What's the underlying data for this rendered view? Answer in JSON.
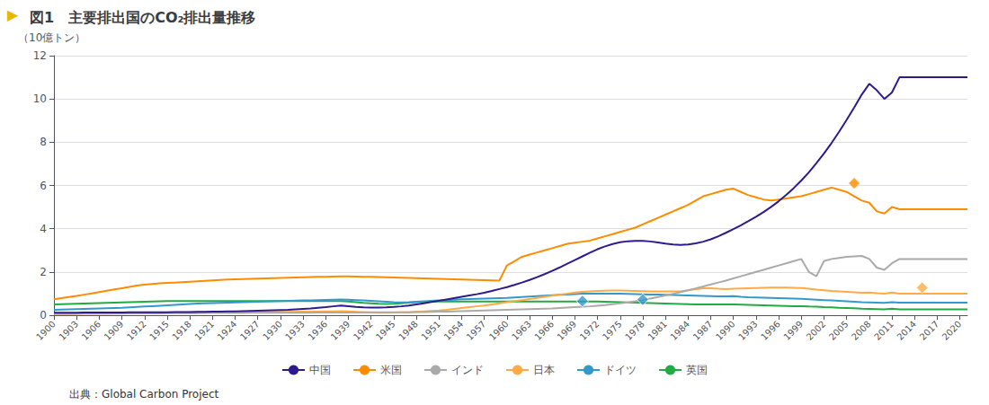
{
  "chart_data": {
    "type": "line",
    "title": "図1　主要排出国のCO₂排出量推移",
    "y_label": "（10億トン）",
    "annotations": [
      {
        "text": "▶",
        "color": "#e8b800"
      },
      {
        "text": "出典：Global Carbon Project",
        "color": "#333333"
      }
    ],
    "x": [
      1900,
      1901,
      1902,
      1903,
      1904,
      1905,
      1906,
      1907,
      1908,
      1909,
      1910,
      1911,
      1912,
      1913,
      1914,
      1915,
      1916,
      1917,
      1918,
      1919,
      1920,
      1921,
      1922,
      1923,
      1924,
      1925,
      1926,
      1927,
      1928,
      1929,
      1930,
      1931,
      1932,
      1933,
      1934,
      1935,
      1936,
      1937,
      1938,
      1939,
      1940,
      1941,
      1942,
      1943,
      1944,
      1945,
      1946,
      1947,
      1948,
      1949,
      1950,
      1951,
      1952,
      1953,
      1954,
      1955,
      1956,
      1957,
      1958,
      1959,
      1960,
      1961,
      1962,
      1963,
      1964,
      1965,
      1966,
      1967,
      1968,
      1969,
      1970,
      1971,
      1972,
      1973,
      1974,
      1975,
      1976,
      1977,
      1978,
      1979,
      1980,
      1981,
      1982,
      1983,
      1984,
      1985,
      1986,
      1987,
      1988,
      1989,
      1990,
      1991,
      1992,
      1993,
      1994,
      1995,
      1996,
      1997,
      1998,
      1999,
      2000,
      2001,
      2002,
      2003,
      2004,
      2005,
      2006,
      2007,
      2008,
      2009,
      2010,
      2011,
      2012,
      2013,
      2014,
      2015,
      2016,
      2017,
      2018,
      2019,
      2020,
      2021
    ],
    "xlim": [
      1900,
      2021
    ],
    "xticks": [
      1900,
      1903,
      1906,
      1909,
      1912,
      1915,
      1918,
      1921,
      1924,
      1927,
      1930,
      1933,
      1936,
      1939,
      1942,
      1945,
      1948,
      1951,
      1954,
      1957,
      1960,
      1963,
      1966,
      1969,
      1972,
      1975,
      1978,
      1981,
      1984,
      1987,
      1990,
      1993,
      1996,
      1999,
      2002,
      2005,
      2008,
      2011,
      2014,
      2017,
      2020
    ],
    "ylim": [
      0,
      12
    ],
    "yticks": [
      0,
      2,
      4,
      6,
      8,
      10,
      12
    ],
    "grid": true,
    "legend": "bottom",
    "series": [
      {
        "name": "中国",
        "color": "#2d1b8e",
        "values": [
          0.11,
          0.11,
          0.11,
          0.11,
          0.12,
          0.12,
          0.12,
          0.12,
          0.12,
          0.12,
          0.13,
          0.13,
          0.13,
          0.14,
          0.14,
          0.14,
          0.15,
          0.15,
          0.15,
          0.16,
          0.16,
          0.17,
          0.17,
          0.18,
          0.18,
          0.19,
          0.2,
          0.21,
          0.22,
          0.23,
          0.24,
          0.25,
          0.27,
          0.29,
          0.31,
          0.34,
          0.37,
          0.41,
          0.45,
          0.42,
          0.38,
          0.36,
          0.35,
          0.35,
          0.36,
          0.38,
          0.41,
          0.45,
          0.5,
          0.55,
          0.61,
          0.67,
          0.73,
          0.79,
          0.85,
          0.91,
          0.97,
          1.04,
          1.12,
          1.21,
          1.3,
          1.4,
          1.51,
          1.63,
          1.76,
          1.9,
          2.05,
          2.21,
          2.38,
          2.55,
          2.72,
          2.89,
          3.05,
          3.18,
          3.29,
          3.37,
          3.42,
          3.44,
          3.44,
          3.41,
          3.36,
          3.31,
          3.27,
          3.25,
          3.27,
          3.32,
          3.4,
          3.51,
          3.65,
          3.81,
          3.98,
          4.16,
          4.35,
          4.55,
          4.77,
          5.01,
          5.27,
          5.56,
          5.88,
          6.23,
          6.61,
          7.03,
          7.48,
          7.96,
          8.48,
          9.03,
          9.6,
          10.2,
          10.7,
          10.4,
          10.0,
          10.3,
          11.0,
          11.0,
          11.0,
          11.0,
          11.0,
          11.0,
          11.0,
          11.0,
          11.0,
          11.0
        ]
      },
      {
        "name": "米国",
        "color": "#ff8c00",
        "values": [
          0.74,
          0.79,
          0.84,
          0.89,
          0.95,
          1.01,
          1.07,
          1.13,
          1.19,
          1.25,
          1.31,
          1.37,
          1.41,
          1.44,
          1.47,
          1.49,
          1.51,
          1.53,
          1.55,
          1.57,
          1.59,
          1.61,
          1.63,
          1.65,
          1.66,
          1.67,
          1.68,
          1.69,
          1.7,
          1.71,
          1.72,
          1.73,
          1.74,
          1.75,
          1.76,
          1.77,
          1.78,
          1.79,
          1.8,
          1.8,
          1.79,
          1.78,
          1.77,
          1.76,
          1.75,
          1.74,
          1.73,
          1.72,
          1.71,
          1.7,
          1.69,
          1.68,
          1.67,
          1.66,
          1.65,
          1.64,
          1.63,
          1.62,
          1.61,
          1.6,
          2.3,
          2.5,
          2.7,
          2.8,
          2.9,
          3.0,
          3.1,
          3.2,
          3.3,
          3.35,
          3.4,
          3.45,
          3.55,
          3.65,
          3.75,
          3.85,
          3.95,
          4.05,
          4.2,
          4.35,
          4.5,
          4.65,
          4.8,
          4.95,
          5.1,
          5.3,
          5.5,
          5.6,
          5.7,
          5.8,
          5.85,
          5.7,
          5.55,
          5.45,
          5.35,
          5.3,
          5.35,
          5.4,
          5.45,
          5.5,
          5.6,
          5.7,
          5.8,
          5.9,
          5.8,
          5.7,
          5.5,
          5.3,
          5.2,
          4.8,
          4.7,
          5.0,
          4.9,
          4.9,
          4.9,
          4.9,
          4.9,
          4.9,
          4.9,
          4.9,
          4.9,
          4.9
        ]
      },
      {
        "name": "インド",
        "color": "#aaaaaa",
        "values": [
          0.06,
          0.06,
          0.06,
          0.07,
          0.07,
          0.07,
          0.07,
          0.07,
          0.07,
          0.07,
          0.08,
          0.08,
          0.08,
          0.08,
          0.08,
          0.09,
          0.09,
          0.09,
          0.09,
          0.09,
          0.1,
          0.1,
          0.1,
          0.1,
          0.1,
          0.1,
          0.11,
          0.11,
          0.11,
          0.11,
          0.11,
          0.11,
          0.11,
          0.11,
          0.11,
          0.12,
          0.12,
          0.12,
          0.12,
          0.12,
          0.12,
          0.13,
          0.13,
          0.13,
          0.13,
          0.13,
          0.14,
          0.14,
          0.15,
          0.15,
          0.16,
          0.17,
          0.17,
          0.18,
          0.19,
          0.2,
          0.21,
          0.22,
          0.23,
          0.24,
          0.25,
          0.26,
          0.27,
          0.28,
          0.29,
          0.3,
          0.31,
          0.33,
          0.35,
          0.37,
          0.39,
          0.41,
          0.44,
          0.47,
          0.51,
          0.55,
          0.59,
          0.64,
          0.7,
          0.77,
          0.84,
          0.91,
          0.99,
          1.07,
          1.15,
          1.24,
          1.33,
          1.42,
          1.51,
          1.6,
          1.7,
          1.8,
          1.9,
          2.0,
          2.1,
          2.2,
          2.3,
          2.4,
          2.5,
          2.6,
          2.0,
          1.8,
          2.5,
          2.6,
          2.65,
          2.7,
          2.72,
          2.74,
          2.6,
          2.2,
          2.1,
          2.4,
          2.6,
          2.6,
          2.6,
          2.6,
          2.6,
          2.6,
          2.6,
          2.6,
          2.6,
          2.6
        ]
      },
      {
        "name": "日本",
        "color": "#ffaa44",
        "values": [
          0.06,
          0.06,
          0.06,
          0.06,
          0.07,
          0.07,
          0.07,
          0.07,
          0.08,
          0.08,
          0.09,
          0.09,
          0.1,
          0.1,
          0.11,
          0.12,
          0.12,
          0.12,
          0.13,
          0.13,
          0.14,
          0.14,
          0.14,
          0.14,
          0.15,
          0.15,
          0.15,
          0.15,
          0.16,
          0.16,
          0.16,
          0.16,
          0.16,
          0.17,
          0.17,
          0.17,
          0.18,
          0.18,
          0.19,
          0.18,
          0.16,
          0.14,
          0.12,
          0.11,
          0.11,
          0.12,
          0.13,
          0.14,
          0.16,
          0.18,
          0.2,
          0.22,
          0.25,
          0.29,
          0.33,
          0.37,
          0.41,
          0.45,
          0.5,
          0.55,
          0.6,
          0.65,
          0.7,
          0.75,
          0.8,
          0.85,
          0.9,
          0.95,
          1.0,
          1.05,
          1.08,
          1.1,
          1.12,
          1.13,
          1.14,
          1.14,
          1.13,
          1.12,
          1.11,
          1.1,
          1.1,
          1.1,
          1.1,
          1.1,
          1.15,
          1.2,
          1.25,
          1.25,
          1.22,
          1.2,
          1.22,
          1.24,
          1.25,
          1.26,
          1.27,
          1.28,
          1.28,
          1.28,
          1.27,
          1.26,
          1.22,
          1.18,
          1.15,
          1.12,
          1.1,
          1.08,
          1.06,
          1.04,
          1.05,
          1.02,
          1.0,
          1.05,
          1.0,
          1.0,
          1.0,
          1.0,
          1.0,
          1.0,
          1.0,
          1.0,
          1.0,
          1.0
        ]
      },
      {
        "name": "ドイツ",
        "color": "#3399cc",
        "values": [
          0.25,
          0.26,
          0.27,
          0.28,
          0.29,
          0.3,
          0.31,
          0.32,
          0.33,
          0.34,
          0.36,
          0.38,
          0.4,
          0.42,
          0.44,
          0.46,
          0.48,
          0.5,
          0.52,
          0.54,
          0.55,
          0.56,
          0.57,
          0.58,
          0.59,
          0.6,
          0.61,
          0.62,
          0.63,
          0.64,
          0.65,
          0.66,
          0.67,
          0.68,
          0.69,
          0.7,
          0.71,
          0.72,
          0.73,
          0.72,
          0.7,
          0.68,
          0.66,
          0.64,
          0.62,
          0.6,
          0.59,
          0.6,
          0.62,
          0.64,
          0.66,
          0.68,
          0.7,
          0.72,
          0.74,
          0.75,
          0.76,
          0.77,
          0.78,
          0.79,
          0.8,
          0.82,
          0.84,
          0.86,
          0.88,
          0.9,
          0.92,
          0.94,
          0.96,
          0.98,
          1.0,
          1.0,
          1.0,
          1.0,
          1.0,
          1.0,
          0.99,
          0.98,
          0.97,
          0.96,
          0.95,
          0.94,
          0.93,
          0.92,
          0.91,
          0.9,
          0.89,
          0.88,
          0.87,
          0.87,
          0.88,
          0.85,
          0.83,
          0.82,
          0.81,
          0.8,
          0.79,
          0.78,
          0.77,
          0.76,
          0.74,
          0.72,
          0.7,
          0.68,
          0.66,
          0.64,
          0.62,
          0.6,
          0.59,
          0.58,
          0.57,
          0.6,
          0.58,
          0.58,
          0.58,
          0.58,
          0.58,
          0.58,
          0.58,
          0.58,
          0.58,
          0.58
        ]
      },
      {
        "name": "英国",
        "color": "#22aa44",
        "values": [
          0.5,
          0.51,
          0.52,
          0.53,
          0.54,
          0.55,
          0.56,
          0.57,
          0.58,
          0.59,
          0.6,
          0.61,
          0.62,
          0.63,
          0.64,
          0.65,
          0.65,
          0.65,
          0.65,
          0.65,
          0.65,
          0.65,
          0.65,
          0.65,
          0.65,
          0.65,
          0.65,
          0.65,
          0.65,
          0.65,
          0.65,
          0.65,
          0.65,
          0.65,
          0.65,
          0.65,
          0.65,
          0.65,
          0.65,
          0.63,
          0.6,
          0.57,
          0.55,
          0.53,
          0.52,
          0.53,
          0.55,
          0.58,
          0.6,
          0.62,
          0.62,
          0.63,
          0.63,
          0.63,
          0.63,
          0.63,
          0.63,
          0.63,
          0.63,
          0.63,
          0.63,
          0.63,
          0.63,
          0.63,
          0.63,
          0.63,
          0.63,
          0.63,
          0.63,
          0.63,
          0.63,
          0.63,
          0.63,
          0.62,
          0.61,
          0.6,
          0.59,
          0.58,
          0.57,
          0.56,
          0.55,
          0.54,
          0.53,
          0.52,
          0.51,
          0.5,
          0.5,
          0.5,
          0.5,
          0.5,
          0.5,
          0.49,
          0.48,
          0.47,
          0.46,
          0.45,
          0.44,
          0.43,
          0.42,
          0.42,
          0.4,
          0.39,
          0.37,
          0.36,
          0.34,
          0.33,
          0.32,
          0.3,
          0.29,
          0.28,
          0.27,
          0.3,
          0.27,
          0.27,
          0.27,
          0.27,
          0.27,
          0.27,
          0.27,
          0.27,
          0.27,
          0.27
        ]
      },
      {
        "type": "scatter",
        "marker": "diamond",
        "color": "#ff8c00",
        "x": [
          2006
        ],
        "values": [
          6.1
        ]
      },
      {
        "type": "scatter",
        "marker": "diamond",
        "color": "#3399cc",
        "x": [
          1970,
          1978
        ],
        "values": [
          0.65,
          0.72
        ]
      },
      {
        "type": "scatter",
        "marker": "diamond",
        "color": "#ffaa44",
        "x": [
          2015
        ],
        "values": [
          1.27
        ]
      }
    ]
  }
}
